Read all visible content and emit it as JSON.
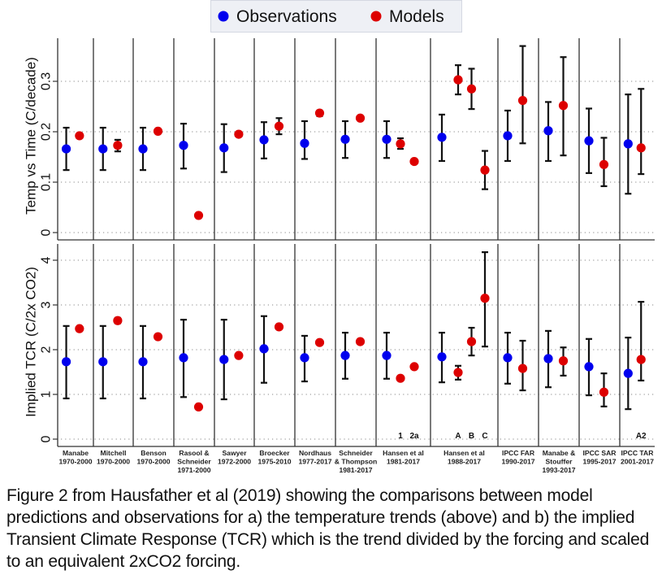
{
  "chart_data": {
    "type": "scatter",
    "subtype": "dot-with-error-bars, two stacked panels",
    "legend": {
      "placement": "top-center",
      "entries": [
        {
          "name": "Observations",
          "color": "#0000ee"
        },
        {
          "name": "Models",
          "color": "#dd0000"
        }
      ]
    },
    "groups": [
      {
        "label": [
          "Manabe",
          "1970-2000"
        ],
        "model_labels": []
      },
      {
        "label": [
          "Mitchell",
          "1970-2000"
        ],
        "model_labels": []
      },
      {
        "label": [
          "Benson",
          "1970-2000"
        ],
        "model_labels": []
      },
      {
        "label": [
          "Rasool &",
          "Schneider",
          "1971-2000"
        ],
        "model_labels": []
      },
      {
        "label": [
          "Sawyer",
          "1972-2000"
        ],
        "model_labels": []
      },
      {
        "label": [
          "Broecker",
          "1975-2010"
        ],
        "model_labels": []
      },
      {
        "label": [
          "Nordhaus",
          "1977-2017"
        ],
        "model_labels": []
      },
      {
        "label": [
          "Schneider",
          "& Thompson",
          "1981-2017"
        ],
        "model_labels": []
      },
      {
        "label": [
          "Hansen et al",
          "1981-2017"
        ],
        "model_labels": [
          "1",
          "2a"
        ]
      },
      {
        "label": [
          "Hansen et al",
          "1988-2017"
        ],
        "model_labels": [
          "A",
          "B",
          "C"
        ]
      },
      {
        "label": [
          "IPCC FAR",
          "1990-2017"
        ],
        "model_labels": []
      },
      {
        "label": [
          "Manabe &",
          "Stouffer",
          "1993-2017"
        ],
        "model_labels": []
      },
      {
        "label": [
          "IPCC SAR",
          "1995-2017"
        ],
        "model_labels": []
      },
      {
        "label": [
          "IPCC TAR",
          "2001-2017"
        ],
        "model_labels": [
          "A2"
        ]
      }
    ],
    "panels": [
      {
        "name": "temperature-trend",
        "ylabel": "Temp vs Time (C/decade)",
        "ylim": [
          0,
          0.38
        ],
        "yticks": [
          0,
          0.1,
          0.2,
          0.3
        ],
        "ytick_labels": [
          "0",
          "0.1",
          "0.2",
          "0.3"
        ],
        "grid": "dotted horizontal",
        "observations": [
          {
            "v": 0.166,
            "lo": 0.124,
            "hi": 0.208
          },
          {
            "v": 0.166,
            "lo": 0.124,
            "hi": 0.208
          },
          {
            "v": 0.166,
            "lo": 0.124,
            "hi": 0.208
          },
          {
            "v": 0.173,
            "lo": 0.127,
            "hi": 0.216
          },
          {
            "v": 0.168,
            "lo": 0.12,
            "hi": 0.215
          },
          {
            "v": 0.184,
            "lo": 0.147,
            "hi": 0.219
          },
          {
            "v": 0.177,
            "lo": 0.146,
            "hi": 0.221
          },
          {
            "v": 0.185,
            "lo": 0.148,
            "hi": 0.221
          },
          {
            "v": 0.185,
            "lo": 0.148,
            "hi": 0.221
          },
          {
            "v": 0.189,
            "lo": 0.142,
            "hi": 0.234
          },
          {
            "v": 0.192,
            "lo": 0.142,
            "hi": 0.242
          },
          {
            "v": 0.202,
            "lo": 0.142,
            "hi": 0.259
          },
          {
            "v": 0.182,
            "lo": 0.118,
            "hi": 0.246
          },
          {
            "v": 0.176,
            "lo": 0.077,
            "hi": 0.274
          }
        ],
        "models": [
          [
            {
              "v": 0.192
            }
          ],
          [
            {
              "v": 0.173,
              "lo": 0.161,
              "hi": 0.184
            }
          ],
          [
            {
              "v": 0.201
            }
          ],
          [
            {
              "v": 0.034
            }
          ],
          [
            {
              "v": 0.195
            }
          ],
          [
            {
              "v": 0.211,
              "lo": 0.195,
              "hi": 0.227
            }
          ],
          [
            {
              "v": 0.237,
              "lo": 0.231,
              "hi": 0.242
            }
          ],
          [
            {
              "v": 0.227
            }
          ],
          [
            {
              "v": 0.176,
              "lo": 0.166,
              "hi": 0.187
            },
            {
              "v": 0.141
            }
          ],
          [
            {
              "v": 0.303,
              "lo": 0.274,
              "hi": 0.332
            },
            {
              "v": 0.285,
              "lo": 0.245,
              "hi": 0.325
            },
            {
              "v": 0.124,
              "lo": 0.086,
              "hi": 0.162
            }
          ],
          [
            {
              "v": 0.262,
              "lo": 0.177,
              "hi": 0.37
            }
          ],
          [
            {
              "v": 0.252,
              "lo": 0.153,
              "hi": 0.348
            }
          ],
          [
            {
              "v": 0.135,
              "lo": 0.092,
              "hi": 0.188
            }
          ],
          [
            {
              "v": 0.168,
              "lo": 0.116,
              "hi": 0.285
            }
          ]
        ]
      },
      {
        "name": "implied-tcr",
        "ylabel": "Implied TCR (C/2x CO2)",
        "ylim": [
          -0.15,
          4.4
        ],
        "yticks": [
          0,
          1,
          2,
          3,
          4
        ],
        "ytick_labels": [
          "0",
          "1",
          "2",
          "3",
          "4"
        ],
        "grid": "dotted horizontal",
        "observations": [
          {
            "v": 1.73,
            "lo": 0.91,
            "hi": 2.53
          },
          {
            "v": 1.73,
            "lo": 0.91,
            "hi": 2.53
          },
          {
            "v": 1.73,
            "lo": 0.91,
            "hi": 2.53
          },
          {
            "v": 1.82,
            "lo": 0.94,
            "hi": 2.67
          },
          {
            "v": 1.78,
            "lo": 0.89,
            "hi": 2.67
          },
          {
            "v": 2.02,
            "lo": 1.26,
            "hi": 2.75
          },
          {
            "v": 1.82,
            "lo": 1.29,
            "hi": 2.31
          },
          {
            "v": 1.87,
            "lo": 1.35,
            "hi": 2.38
          },
          {
            "v": 1.87,
            "lo": 1.35,
            "hi": 2.38
          },
          {
            "v": 1.84,
            "lo": 1.27,
            "hi": 2.38
          },
          {
            "v": 1.82,
            "lo": 1.24,
            "hi": 2.38
          },
          {
            "v": 1.8,
            "lo": 1.16,
            "hi": 2.42
          },
          {
            "v": 1.62,
            "lo": 0.98,
            "hi": 2.24
          },
          {
            "v": 1.47,
            "lo": 0.67,
            "hi": 2.27
          }
        ],
        "models": [
          [
            {
              "v": 2.47
            }
          ],
          [
            {
              "v": 2.65,
              "lo": 2.59,
              "hi": 2.71
            }
          ],
          [
            {
              "v": 2.29
            }
          ],
          [
            {
              "v": 0.72
            }
          ],
          [
            {
              "v": 1.87
            }
          ],
          [
            {
              "v": 2.51
            }
          ],
          [
            {
              "v": 2.16
            }
          ],
          [
            {
              "v": 2.18
            }
          ],
          [
            {
              "v": 1.36
            },
            {
              "v": 1.62
            }
          ],
          [
            {
              "v": 1.49,
              "lo": 1.33,
              "hi": 1.64
            },
            {
              "v": 2.18,
              "lo": 1.87,
              "hi": 2.49
            },
            {
              "v": 3.15,
              "lo": 2.07,
              "hi": 4.18
            }
          ],
          [
            {
              "v": 1.58,
              "lo": 1.09,
              "hi": 2.2
            }
          ],
          [
            {
              "v": 1.75,
              "lo": 1.42,
              "hi": 2.05
            }
          ],
          [
            {
              "v": 1.05,
              "lo": 0.73,
              "hi": 1.47
            }
          ],
          [
            {
              "v": 1.78,
              "lo": 1.31,
              "hi": 3.07
            }
          ]
        ]
      }
    ]
  },
  "caption": "Figure 2 from Hausfather et al (2019) showing the comparisons between model predictions and observations for a) the temperature trends (above) and b) the implied Transient Climate Response (TCR) which is the trend divided by the forcing and scaled to an equivalent 2xCO2 forcing."
}
